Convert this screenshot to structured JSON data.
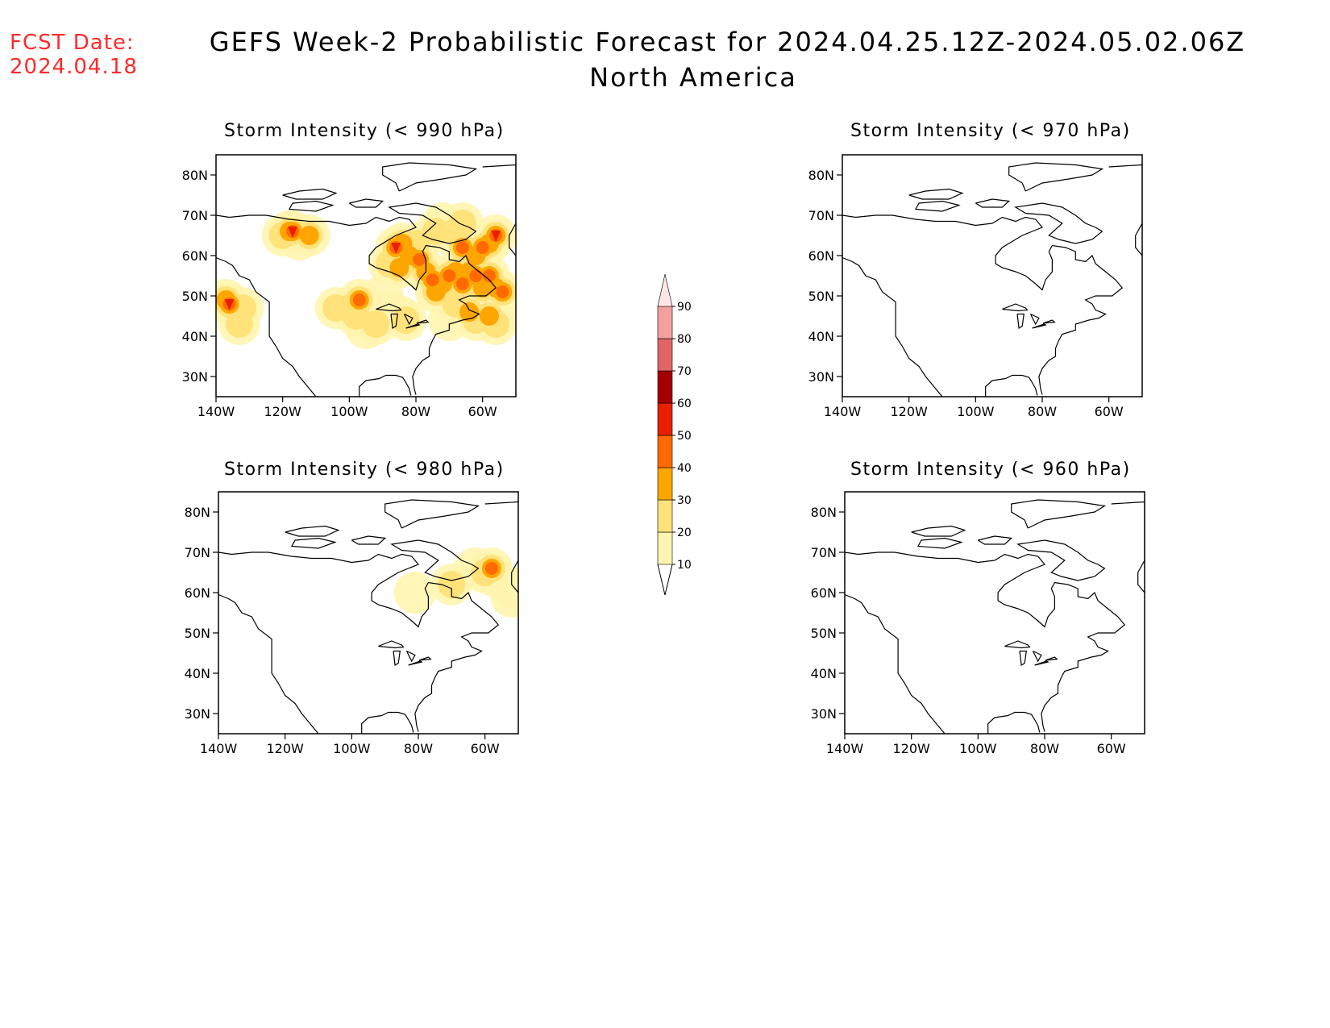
{
  "header": {
    "fcst_label": "FCST Date:",
    "fcst_date": "2024.04.18",
    "title_line1": "GEFS Week-2 Probabilistic Forecast for 2024.04.25.12Z-2024.05.02.06Z",
    "title_line2": "North America"
  },
  "panels": [
    {
      "title": "Storm Intensity (< 990 hPa)",
      "has_field": true
    },
    {
      "title": "Storm Intensity (< 970 hPa)",
      "has_field": false
    },
    {
      "title": "Storm Intensity (< 980 hPa)",
      "has_field": "sparse"
    },
    {
      "title": "Storm Intensity (< 960 hPa)",
      "has_field": false
    }
  ],
  "axes": {
    "lat_labels": [
      "80N",
      "70N",
      "60N",
      "50N",
      "40N",
      "30N"
    ],
    "lon_labels": [
      "140W",
      "120W",
      "100W",
      "80W",
      "60W"
    ]
  },
  "colorbar": {
    "levels": [
      "10",
      "20",
      "30",
      "40",
      "50",
      "60",
      "70",
      "80",
      "90"
    ],
    "colors": [
      "#fff5b0",
      "#ffe27a",
      "#ffa500",
      "#ff6a00",
      "#e82000",
      "#a50000",
      "#e06666",
      "#f2a0a0",
      "#ffe6e6"
    ]
  }
}
